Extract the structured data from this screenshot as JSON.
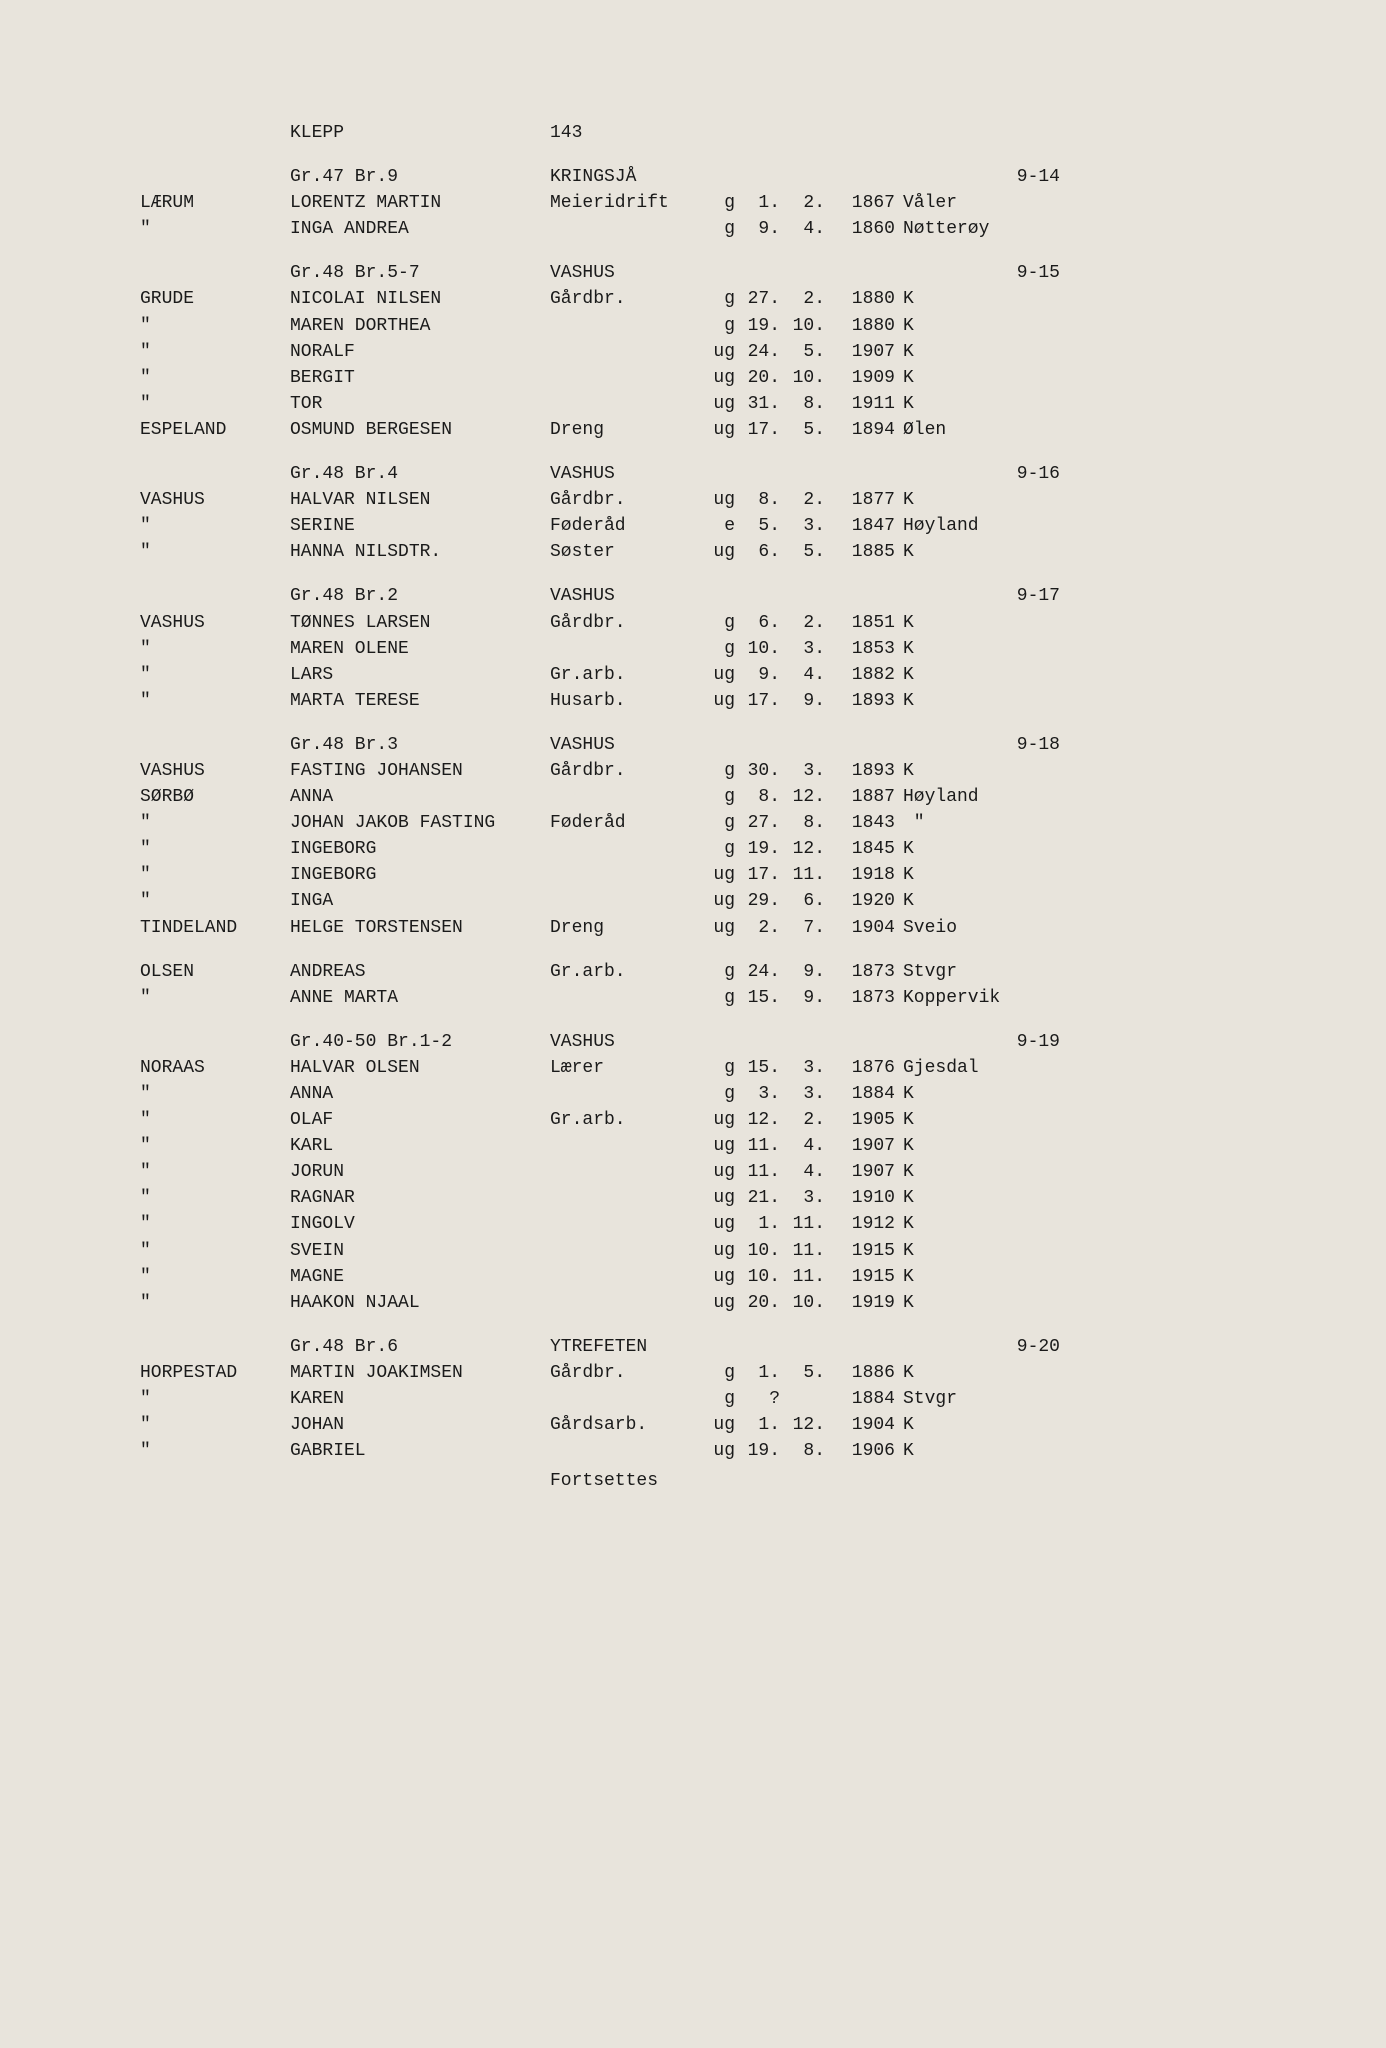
{
  "title": {
    "municipality": "KLEPP",
    "page": "143"
  },
  "footer": "Fortsettes",
  "sections": [
    {
      "header": {
        "farm": "Gr.47 Br.9",
        "name": "KRINGSJÅ",
        "ref": "9-14"
      },
      "rows": [
        {
          "surname": "LÆRUM",
          "name": "LORENTZ MARTIN",
          "occ": "Meieridrift",
          "ms": "g",
          "day": "1.",
          "mon": "2.",
          "year": "1867",
          "place": "Våler"
        },
        {
          "surname": "\"",
          "name": "INGA ANDREA",
          "occ": "",
          "ms": "g",
          "day": "9.",
          "mon": "4.",
          "year": "1860",
          "place": "Nøtterøy"
        }
      ]
    },
    {
      "header": {
        "farm": "Gr.48 Br.5-7",
        "name": "VASHUS",
        "ref": "9-15"
      },
      "rows": [
        {
          "surname": "GRUDE",
          "name": "NICOLAI NILSEN",
          "occ": "Gårdbr.",
          "ms": "g",
          "day": "27.",
          "mon": "2.",
          "year": "1880",
          "place": "K"
        },
        {
          "surname": "\"",
          "name": "MAREN DORTHEA",
          "occ": "",
          "ms": "g",
          "day": "19.",
          "mon": "10.",
          "year": "1880",
          "place": "K"
        },
        {
          "surname": "\"",
          "name": "NORALF",
          "occ": "",
          "ms": "ug",
          "day": "24.",
          "mon": "5.",
          "year": "1907",
          "place": "K"
        },
        {
          "surname": "\"",
          "name": "BERGIT",
          "occ": "",
          "ms": "ug",
          "day": "20.",
          "mon": "10.",
          "year": "1909",
          "place": "K"
        },
        {
          "surname": "\"",
          "name": "TOR",
          "occ": "",
          "ms": "ug",
          "day": "31.",
          "mon": "8.",
          "year": "1911",
          "place": "K"
        },
        {
          "surname": "ESPELAND",
          "name": "OSMUND BERGESEN",
          "occ": "Dreng",
          "ms": "ug",
          "day": "17.",
          "mon": "5.",
          "year": "1894",
          "place": "Ølen"
        }
      ]
    },
    {
      "header": {
        "farm": "Gr.48 Br.4",
        "name": "VASHUS",
        "ref": "9-16"
      },
      "rows": [
        {
          "surname": "VASHUS",
          "name": "HALVAR NILSEN",
          "occ": "Gårdbr.",
          "ms": "ug",
          "day": "8.",
          "mon": "2.",
          "year": "1877",
          "place": "K"
        },
        {
          "surname": "\"",
          "name": "SERINE",
          "occ": "Føderåd",
          "ms": "e",
          "day": "5.",
          "mon": "3.",
          "year": "1847",
          "place": "Høyland"
        },
        {
          "surname": "\"",
          "name": "HANNA NILSDTR.",
          "occ": "Søster",
          "ms": "ug",
          "day": "6.",
          "mon": "5.",
          "year": "1885",
          "place": "K"
        }
      ]
    },
    {
      "header": {
        "farm": "Gr.48 Br.2",
        "name": "VASHUS",
        "ref": "9-17"
      },
      "rows": [
        {
          "surname": "VASHUS",
          "name": "TØNNES LARSEN",
          "occ": "Gårdbr.",
          "ms": "g",
          "day": "6.",
          "mon": "2.",
          "year": "1851",
          "place": "K"
        },
        {
          "surname": "\"",
          "name": "MAREN OLENE",
          "occ": "",
          "ms": "g",
          "day": "10.",
          "mon": "3.",
          "year": "1853",
          "place": "K"
        },
        {
          "surname": "\"",
          "name": "LARS",
          "occ": "Gr.arb.",
          "ms": "ug",
          "day": "9.",
          "mon": "4.",
          "year": "1882",
          "place": "K"
        },
        {
          "surname": "\"",
          "name": "MARTA TERESE",
          "occ": "Husarb.",
          "ms": "ug",
          "day": "17.",
          "mon": "9.",
          "year": "1893",
          "place": "K"
        }
      ]
    },
    {
      "header": {
        "farm": "Gr.48 Br.3",
        "name": "VASHUS",
        "ref": "9-18"
      },
      "rows": [
        {
          "surname": "VASHUS",
          "name": "FASTING JOHANSEN",
          "occ": "Gårdbr.",
          "ms": "g",
          "day": "30.",
          "mon": "3.",
          "year": "1893",
          "place": "K"
        },
        {
          "surname": "SØRBØ",
          "name": "ANNA",
          "occ": "",
          "ms": "g",
          "day": "8.",
          "mon": "12.",
          "year": "1887",
          "place": "Høyland"
        },
        {
          "surname": "\"",
          "name": "JOHAN JAKOB FASTING",
          "occ": "Føderåd",
          "ms": "g",
          "day": "27.",
          "mon": "8.",
          "year": "1843",
          "place": " \""
        },
        {
          "surname": "\"",
          "name": "INGEBORG",
          "occ": "",
          "ms": "g",
          "day": "19.",
          "mon": "12.",
          "year": "1845",
          "place": "K"
        },
        {
          "surname": "\"",
          "name": "INGEBORG",
          "occ": "",
          "ms": "ug",
          "day": "17.",
          "mon": "11.",
          "year": "1918",
          "place": "K"
        },
        {
          "surname": "\"",
          "name": "INGA",
          "occ": "",
          "ms": "ug",
          "day": "29.",
          "mon": "6.",
          "year": "1920",
          "place": "K"
        },
        {
          "surname": "TINDELAND",
          "name": "HELGE TORSTENSEN",
          "occ": "Dreng",
          "ms": "ug",
          "day": "2.",
          "mon": "7.",
          "year": "1904",
          "place": "Sveio"
        }
      ],
      "rows2": [
        {
          "surname": "OLSEN",
          "name": "ANDREAS",
          "occ": "Gr.arb.",
          "ms": "g",
          "day": "24.",
          "mon": "9.",
          "year": "1873",
          "place": "Stvgr"
        },
        {
          "surname": "\"",
          "name": "ANNE MARTA",
          "occ": "",
          "ms": "g",
          "day": "15.",
          "mon": "9.",
          "year": "1873",
          "place": "Koppervik"
        }
      ]
    },
    {
      "header": {
        "farm": "Gr.40-50 Br.1-2",
        "name": "VASHUS",
        "ref": "9-19"
      },
      "rows": [
        {
          "surname": "NORAAS",
          "name": "HALVAR OLSEN",
          "occ": "Lærer",
          "ms": "g",
          "day": "15.",
          "mon": "3.",
          "year": "1876",
          "place": "Gjesdal"
        },
        {
          "surname": "\"",
          "name": "ANNA",
          "occ": "",
          "ms": "g",
          "day": "3.",
          "mon": "3.",
          "year": "1884",
          "place": "K"
        },
        {
          "surname": "\"",
          "name": "OLAF",
          "occ": "Gr.arb.",
          "ms": "ug",
          "day": "12.",
          "mon": "2.",
          "year": "1905",
          "place": "K"
        },
        {
          "surname": "\"",
          "name": "KARL",
          "occ": "",
          "ms": "ug",
          "day": "11.",
          "mon": "4.",
          "year": "1907",
          "place": "K"
        },
        {
          "surname": "\"",
          "name": "JORUN",
          "occ": "",
          "ms": "ug",
          "day": "11.",
          "mon": "4.",
          "year": "1907",
          "place": "K"
        },
        {
          "surname": "\"",
          "name": "RAGNAR",
          "occ": "",
          "ms": "ug",
          "day": "21.",
          "mon": "3.",
          "year": "1910",
          "place": "K"
        },
        {
          "surname": "\"",
          "name": "INGOLV",
          "occ": "",
          "ms": "ug",
          "day": "1.",
          "mon": "11.",
          "year": "1912",
          "place": "K"
        },
        {
          "surname": "\"",
          "name": "SVEIN",
          "occ": "",
          "ms": "ug",
          "day": "10.",
          "mon": "11.",
          "year": "1915",
          "place": "K"
        },
        {
          "surname": "\"",
          "name": "MAGNE",
          "occ": "",
          "ms": "ug",
          "day": "10.",
          "mon": "11.",
          "year": "1915",
          "place": "K"
        },
        {
          "surname": "\"",
          "name": "HAAKON NJAAL",
          "occ": "",
          "ms": "ug",
          "day": "20.",
          "mon": "10.",
          "year": "1919",
          "place": "K"
        }
      ]
    },
    {
      "header": {
        "farm": "Gr.48 Br.6",
        "name": "YTREFETEN",
        "ref": "9-20"
      },
      "rows": [
        {
          "surname": "HORPESTAD",
          "name": "MARTIN JOAKIMSEN",
          "occ": "Gårdbr.",
          "ms": "g",
          "day": "1.",
          "mon": "5.",
          "year": "1886",
          "place": "K"
        },
        {
          "surname": "\"",
          "name": "KAREN",
          "occ": "",
          "ms": "g",
          "day": "?",
          "mon": "",
          "year": "1884",
          "place": "Stvgr"
        },
        {
          "surname": "\"",
          "name": "JOHAN",
          "occ": "Gårdsarb.",
          "ms": "ug",
          "day": "1.",
          "mon": "12.",
          "year": "1904",
          "place": "K"
        },
        {
          "surname": "\"",
          "name": "GABRIEL",
          "occ": "",
          "ms": "ug",
          "day": "19.",
          "mon": "8.",
          "year": "1906",
          "place": "K"
        }
      ]
    }
  ]
}
